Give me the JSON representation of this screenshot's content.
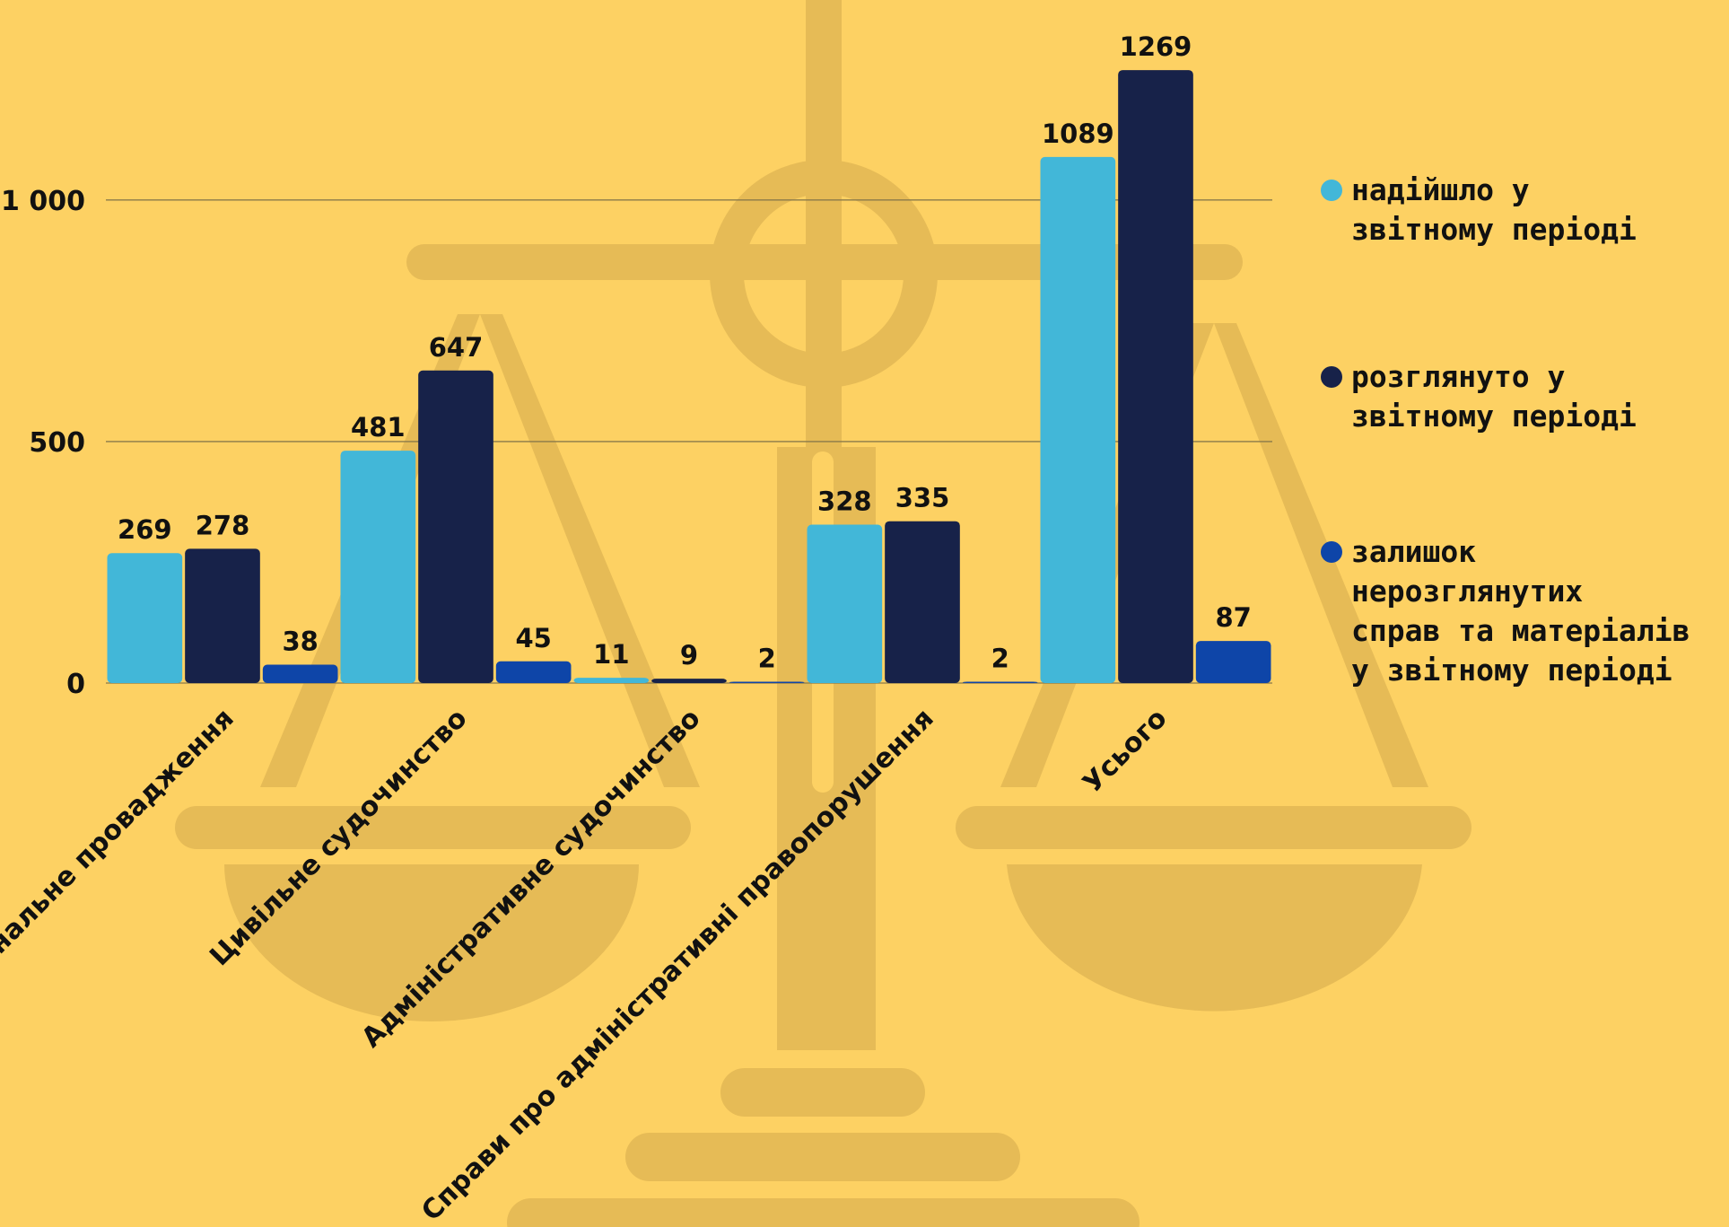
{
  "chart_data": {
    "type": "bar",
    "categories": [
      "Кримінальне провадження",
      "Цивільне судочинство",
      "Адміністративне судочинство",
      "Справи про адміністративні правопорушення",
      "Усього"
    ],
    "series": [
      {
        "name": "надійшло у звітному періоді",
        "color": "#42B7D8",
        "values": [
          269,
          481,
          11,
          328,
          1089
        ]
      },
      {
        "name": "розглянуто у звітному періоді",
        "color": "#172249",
        "values": [
          278,
          647,
          9,
          335,
          1269
        ]
      },
      {
        "name": "залишок нерозглянутих справ та матеріалів у звітному періоді",
        "color": "#0E45A8",
        "values": [
          38,
          45,
          2,
          2,
          87
        ]
      }
    ],
    "data_labels": [
      [
        "269",
        "481",
        "11",
        "328",
        "1089"
      ],
      [
        "278",
        "647",
        "9",
        "335",
        "1269"
      ],
      [
        "38",
        "45",
        "2",
        "2",
        "87"
      ]
    ],
    "yticks": [
      0,
      500,
      1000
    ],
    "ytick_labels": [
      "0",
      "500",
      "1 000"
    ],
    "ylim": [
      0,
      1310
    ],
    "grid": true,
    "legend_position": "right",
    "legend_lines": [
      [
        "надійшло у",
        "звітному періоді"
      ],
      [
        "розглянуто у",
        "звітному періоді"
      ],
      [
        "залишок",
        "нерозглянутих",
        "справ та матеріалів",
        "у звітному періоді"
      ]
    ]
  },
  "colors": {
    "background": "#FDD163",
    "watermark": "#E6BB56",
    "grid": "#8A7A4A",
    "text": "#111111"
  },
  "watermark_icon": "scales-of-justice-icon"
}
